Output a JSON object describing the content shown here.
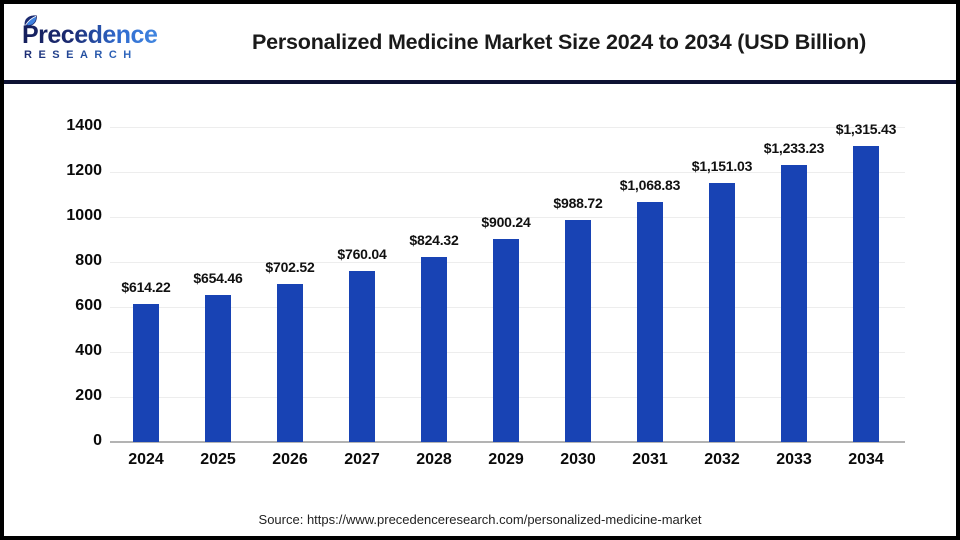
{
  "header": {
    "logo": {
      "brand": "Precedence",
      "sub": "RESEARCH"
    },
    "title": "Personalized Medicine Market Size 2024 to 2034 (USD Billion)"
  },
  "chart_data": {
    "type": "bar",
    "title": "Personalized Medicine Market Size 2024 to 2034 (USD Billion)",
    "categories": [
      "2024",
      "2025",
      "2026",
      "2027",
      "2028",
      "2029",
      "2030",
      "2031",
      "2032",
      "2033",
      "2034"
    ],
    "values": [
      614.22,
      654.46,
      702.52,
      760.04,
      824.32,
      900.24,
      988.72,
      1068.83,
      1151.03,
      1233.23,
      1315.43
    ],
    "value_labels": [
      "$614.22",
      "$654.46",
      "$702.52",
      "$760.04",
      "$824.32",
      "$900.24",
      "$988.72",
      "$1,068.83",
      "$1,151.03",
      "$1,233.23",
      "$1,315.43"
    ],
    "xlabel": "",
    "ylabel": "",
    "ylim": [
      0,
      1400
    ],
    "y_ticks": [
      0,
      200,
      400,
      600,
      800,
      1000,
      1200,
      1400
    ],
    "grid": true,
    "legend": false
  },
  "footer": {
    "source": "Source: https://www.precedenceresearch.com/personalized-medicine-market"
  },
  "colors": {
    "bar": "#1843B4",
    "divider": "#0E1233",
    "grid": "#EDEDED",
    "axis_line": "#B3B3B3",
    "frame_border": "#000000",
    "title_text": "#1A1A1A",
    "logo_navy": "#1B2A70",
    "logo_blue": "#2F6ACE"
  }
}
